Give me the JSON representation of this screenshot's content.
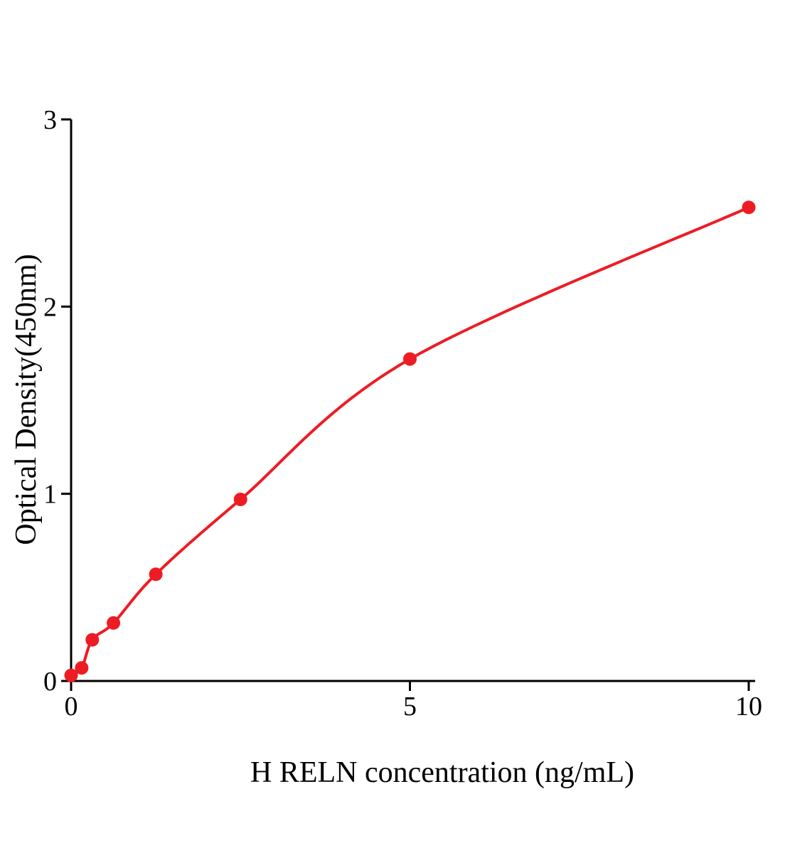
{
  "chart_data": {
    "type": "scatter",
    "xlabel": "H RELN concentration (ng/mL)",
    "ylabel": "Optical Density(450nm)",
    "xlim": [
      0,
      10
    ],
    "ylim": [
      0,
      3
    ],
    "x_ticks": [
      0,
      5,
      10
    ],
    "y_ticks": [
      0,
      1,
      2,
      3
    ],
    "grid": false,
    "legend": "none",
    "points": [
      {
        "x": 0,
        "y": 0.03
      },
      {
        "x": 0.156,
        "y": 0.07
      },
      {
        "x": 0.3125,
        "y": 0.22
      },
      {
        "x": 0.625,
        "y": 0.31
      },
      {
        "x": 1.25,
        "y": 0.57
      },
      {
        "x": 2.5,
        "y": 0.97
      },
      {
        "x": 5,
        "y": 1.72
      },
      {
        "x": 10,
        "y": 2.53
      }
    ],
    "point_color": "#ed1c24",
    "curve_color": "#ed1c24",
    "axis_color": "#000000"
  }
}
